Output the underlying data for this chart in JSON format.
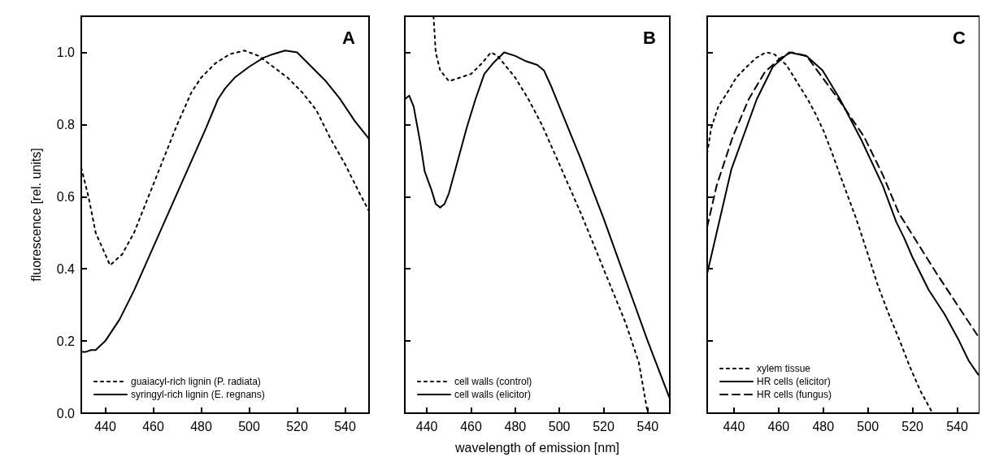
{
  "chart_data": [
    {
      "type": "line",
      "title": "A",
      "ylabel": "fluorescence [rel. units]",
      "xlim": [
        430,
        550
      ],
      "xticks": [
        440,
        460,
        480,
        500,
        520,
        540
      ],
      "ylim": [
        0,
        1.1
      ],
      "yticks": [
        {
          "value": 0,
          "label": "0.0"
        },
        {
          "value": 0.2,
          "label": "0.2"
        },
        {
          "value": 0.4,
          "label": "0.4"
        },
        {
          "value": 0.6,
          "label": "0.6"
        },
        {
          "value": 0.8,
          "label": "0.8"
        },
        {
          "value": 1,
          "label": "1.0"
        }
      ],
      "grid": false,
      "legend": "bottom left",
      "marker": "none",
      "series": [
        {
          "name": "guaiacyl-rich lignin (P. radiata)",
          "color": "#000000",
          "line_style": "dotted",
          "x": [
            430,
            433,
            436,
            440,
            442,
            447,
            452,
            458,
            464,
            470,
            476,
            480,
            486,
            492,
            498,
            504,
            510,
            516,
            522,
            528,
            534,
            540,
            546,
            550
          ],
          "values": [
            0.68,
            0.6,
            0.5,
            0.44,
            0.41,
            0.44,
            0.5,
            0.6,
            0.7,
            0.8,
            0.89,
            0.93,
            0.97,
            0.995,
            1.005,
            0.99,
            0.96,
            0.93,
            0.89,
            0.84,
            0.76,
            0.69,
            0.61,
            0.56
          ]
        },
        {
          "name": "syringyl-rich lignin (E. regnans)",
          "color": "#000000",
          "line_style": "solid",
          "x": [
            430,
            432,
            434,
            436,
            440,
            446,
            452,
            458,
            464,
            470,
            476,
            482,
            487,
            490,
            494,
            500,
            506,
            510,
            515,
            520,
            526,
            532,
            538,
            544,
            550
          ],
          "values": [
            0.17,
            0.17,
            0.175,
            0.175,
            0.2,
            0.26,
            0.34,
            0.43,
            0.52,
            0.61,
            0.7,
            0.79,
            0.87,
            0.9,
            0.93,
            0.96,
            0.985,
            0.995,
            1.005,
            1.0,
            0.96,
            0.92,
            0.87,
            0.81,
            0.76
          ]
        }
      ]
    },
    {
      "type": "line",
      "title": "B",
      "xlabel": "wavelength of emission [nm]",
      "xlim": [
        430,
        550
      ],
      "xticks": [
        440,
        460,
        480,
        500,
        520,
        540
      ],
      "ylim": [
        0,
        1.1
      ],
      "yticks": [
        {
          "value": 0,
          "label": null
        },
        {
          "value": 0.2,
          "label": null
        },
        {
          "value": 0.4,
          "label": null
        },
        {
          "value": 0.6,
          "label": null
        },
        {
          "value": 0.8,
          "label": null
        },
        {
          "value": 1,
          "label": null
        }
      ],
      "tick_labels": "x",
      "grid": false,
      "legend": "bottom left",
      "marker": "none",
      "series": [
        {
          "name": "cell walls (control)",
          "color": "#000000",
          "line_style": "dotted",
          "x": [
            443,
            444,
            446,
            450,
            455,
            460,
            465,
            469,
            472,
            476,
            480,
            486,
            492,
            500,
            510,
            520,
            530,
            536,
            540
          ],
          "values": [
            1.1,
            1.0,
            0.95,
            0.92,
            0.93,
            0.94,
            0.97,
            1.0,
            0.99,
            0.96,
            0.93,
            0.87,
            0.8,
            0.69,
            0.55,
            0.4,
            0.25,
            0.14,
            0.0
          ]
        },
        {
          "name": "cell walls (elicitor)",
          "color": "#000000",
          "line_style": "solid",
          "x": [
            430,
            432,
            434,
            437,
            439,
            442,
            444,
            446,
            448,
            450,
            454,
            458,
            462,
            466,
            470,
            475,
            480,
            485,
            490,
            493,
            496,
            500,
            510,
            520,
            530,
            540,
            550
          ],
          "values": [
            0.87,
            0.88,
            0.85,
            0.75,
            0.67,
            0.62,
            0.58,
            0.57,
            0.58,
            0.61,
            0.7,
            0.79,
            0.87,
            0.94,
            0.97,
            1.0,
            0.99,
            0.975,
            0.965,
            0.95,
            0.91,
            0.85,
            0.7,
            0.54,
            0.37,
            0.2,
            0.04
          ]
        }
      ]
    },
    {
      "type": "line",
      "title": "C",
      "xlim": [
        428,
        550
      ],
      "xticks": [
        440,
        460,
        480,
        500,
        520,
        540
      ],
      "ylim": [
        0,
        1.1
      ],
      "yticks": [
        {
          "value": 0,
          "label": null
        },
        {
          "value": 0.2,
          "label": null
        },
        {
          "value": 0.4,
          "label": null
        },
        {
          "value": 0.6,
          "label": null
        },
        {
          "value": 0.8,
          "label": null
        },
        {
          "value": 1,
          "label": null
        }
      ],
      "tick_labels": "x",
      "grid": false,
      "legend": "bottom left",
      "marker": "none",
      "series": [
        {
          "name": "xylem tissue",
          "color": "#000000",
          "line_style": "dotted",
          "x": [
            428,
            429.8,
            433,
            438.2,
            441,
            445.4,
            450,
            454.4,
            458,
            463.5,
            468,
            473,
            476.5,
            480.3,
            484,
            487.5,
            494.7,
            499.5,
            504.3,
            509,
            514,
            518.7,
            523.5,
            529
          ],
          "values": [
            0.72,
            0.79,
            0.85,
            0.9,
            0.93,
            0.958,
            0.985,
            1.0,
            0.995,
            0.965,
            0.92,
            0.87,
            0.83,
            0.78,
            0.72,
            0.66,
            0.54,
            0.45,
            0.357,
            0.28,
            0.205,
            0.13,
            0.062,
            0.0
          ]
        },
        {
          "name": "HR cells (elicitor)",
          "color": "#000000",
          "line_style": "solid",
          "x": [
            428,
            438.8,
            450.2,
            457.4,
            464.7,
            472.5,
            479.7,
            487.5,
            497,
            506.7,
            512.7,
            516.3,
            519.9,
            527.2,
            534.4,
            540.4,
            545.2,
            549.4
          ],
          "values": [
            0.387,
            0.675,
            0.87,
            0.96,
            1.0,
            0.99,
            0.95,
            0.87,
            0.758,
            0.63,
            0.53,
            0.485,
            0.433,
            0.342,
            0.274,
            0.206,
            0.145,
            0.107
          ]
        },
        {
          "name": "HR cells (fungus)",
          "color": "#000000",
          "line_style": "dashed",
          "x": [
            428,
            432.2,
            439.4,
            446.6,
            453.8,
            461,
            465.9,
            472.5,
            487.5,
            498.3,
            506.7,
            513.9,
            522.4,
            530.8,
            540.4,
            549.4
          ],
          "values": [
            0.516,
            0.63,
            0.765,
            0.87,
            0.945,
            0.985,
            1.0,
            0.99,
            0.864,
            0.766,
            0.66,
            0.554,
            0.47,
            0.387,
            0.297,
            0.213
          ]
        }
      ]
    }
  ]
}
